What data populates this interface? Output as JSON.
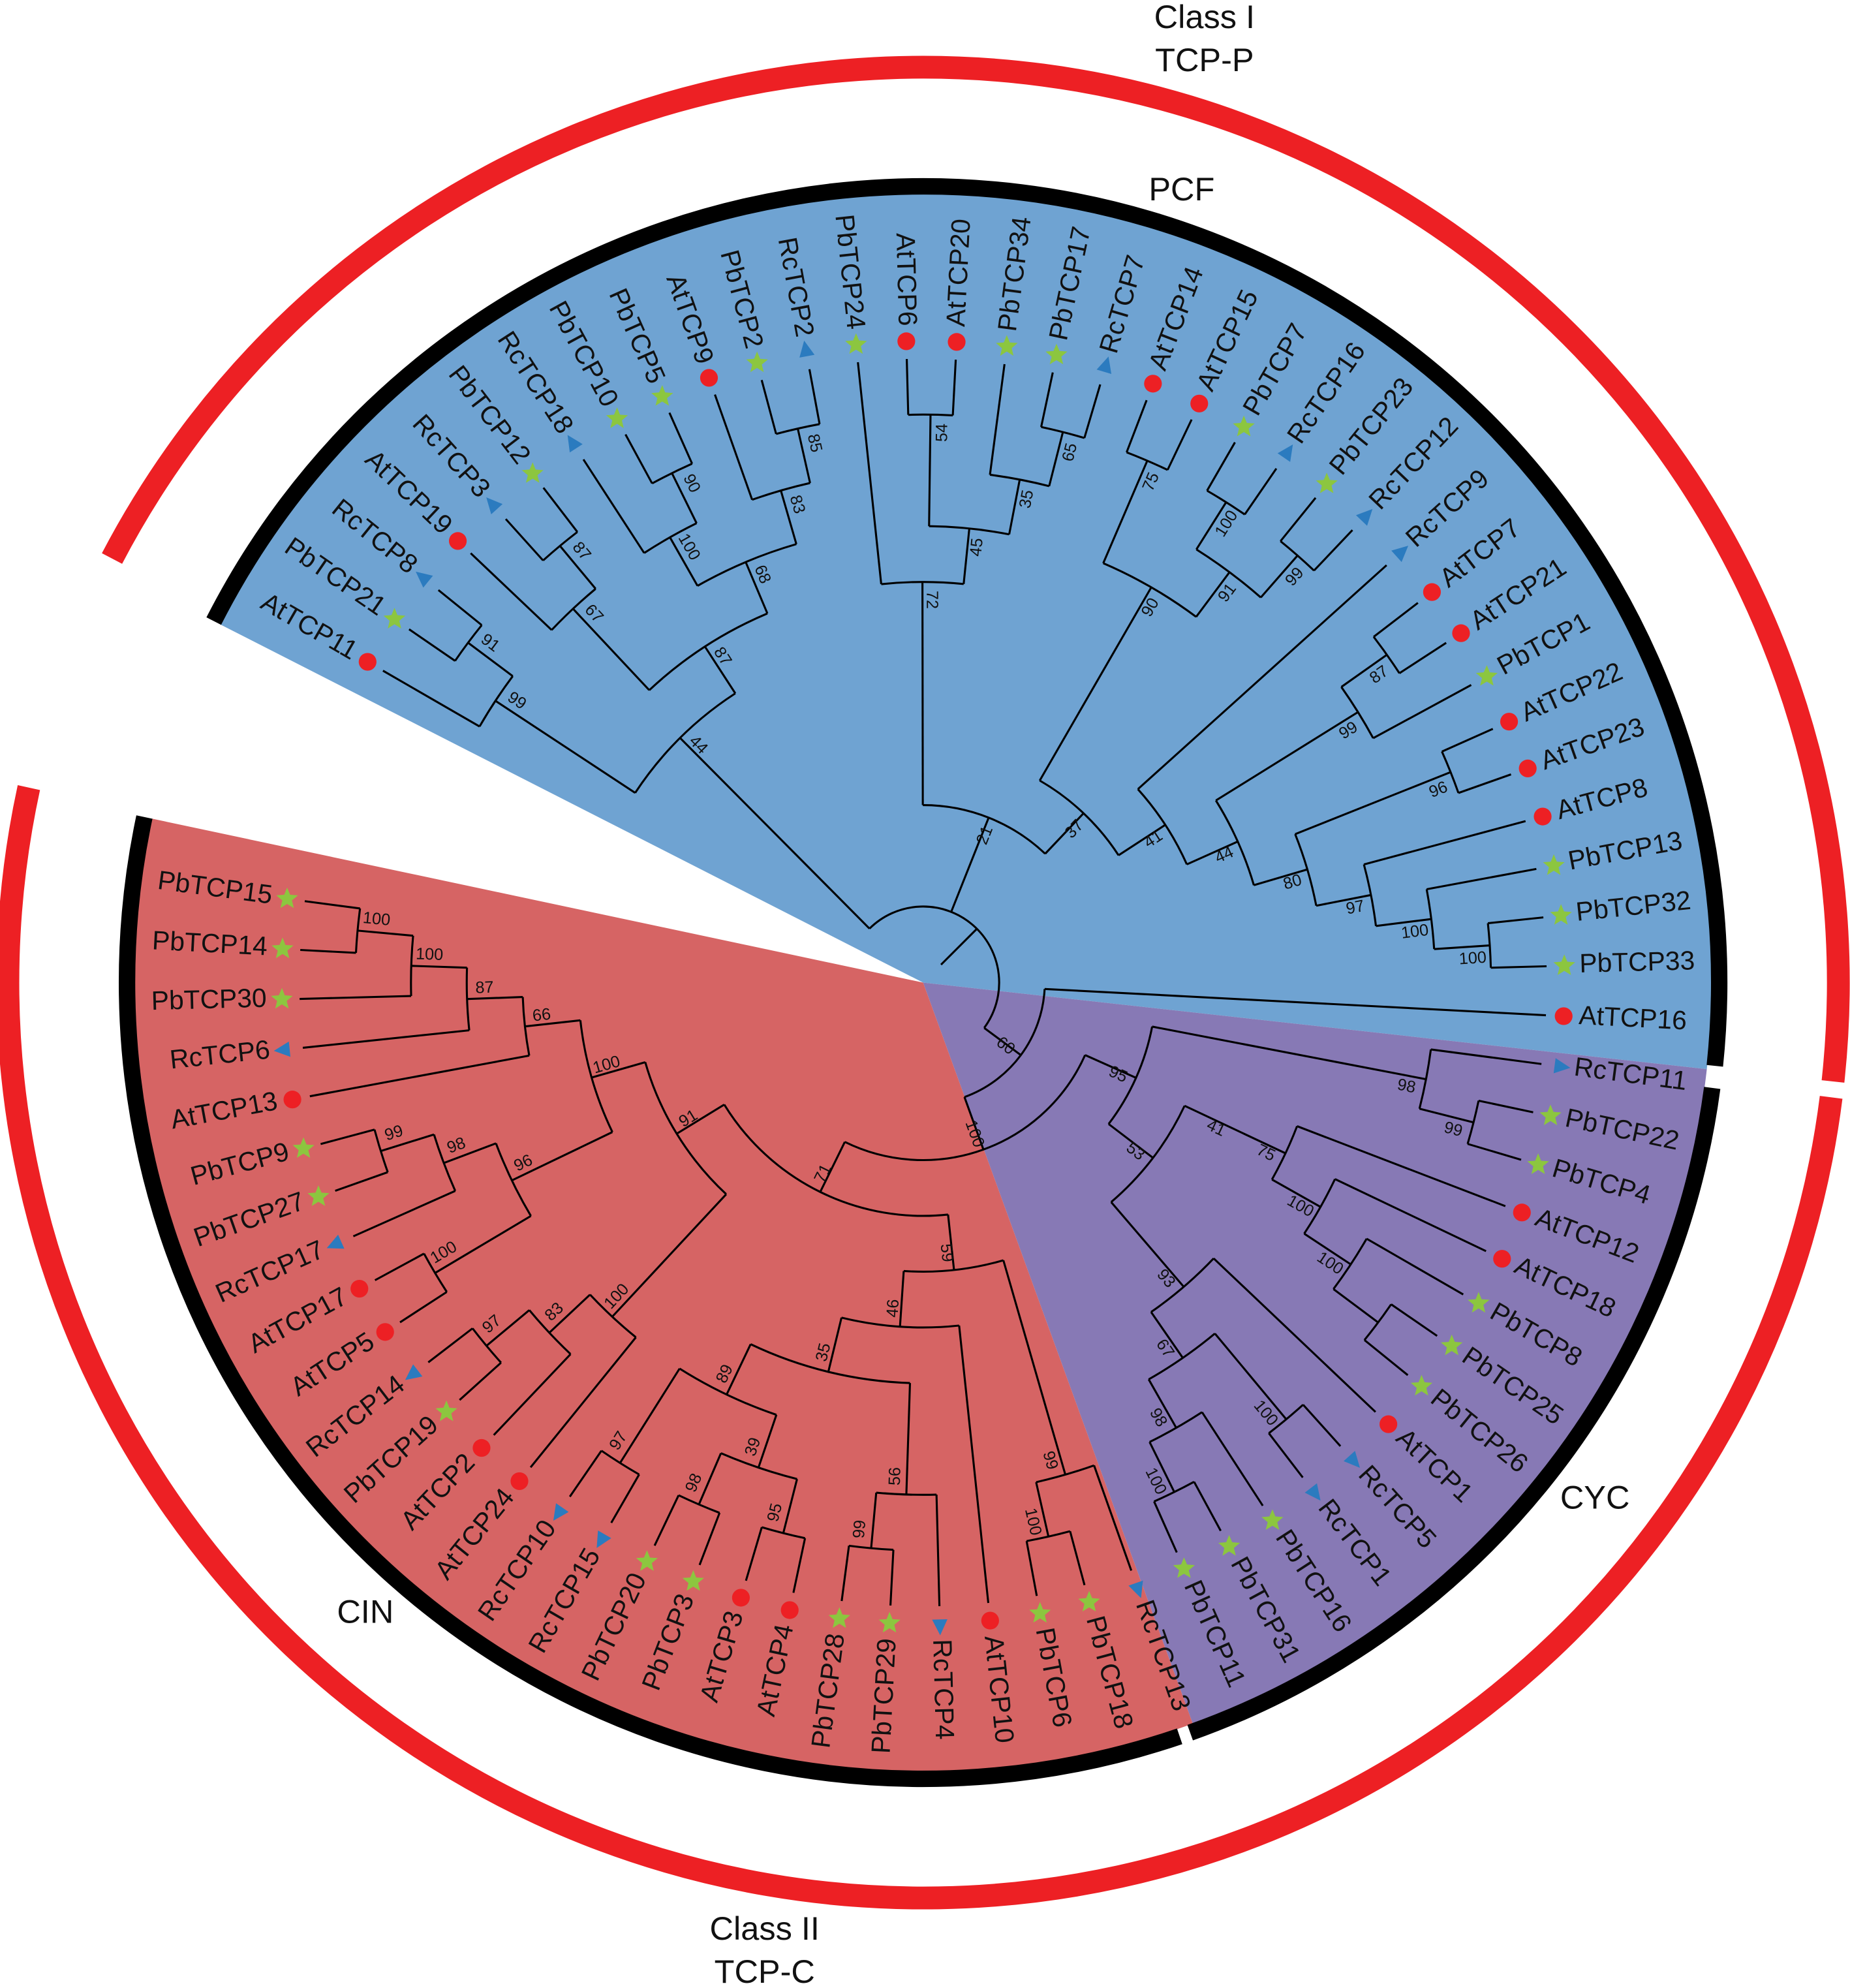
{
  "labels": {
    "class1_line1": "Class I",
    "class1_line2": "TCP-P",
    "class2_line1": "Class II",
    "class2_line2": "TCP-C",
    "pcf": "PCF",
    "cyc": "CYC",
    "cin": "CIN"
  },
  "colors": {
    "pcf_fill": "#6fa3d2",
    "cyc_fill": "#8779b5",
    "cin_fill": "#d66464",
    "class_ring": "#ed2024",
    "subfamily_ring": "#000000",
    "At_marker": "#ed2024",
    "Pb_marker": "#8cc63f",
    "Rc_marker": "#2b7bbf"
  },
  "markers": {
    "At": "red-circle",
    "Pb": "green-star",
    "Rc": "blue-triangle"
  },
  "tree": {
    "c": [
      {
        "b": 44,
        "c": [
          {
            "b": 99,
            "c": [
              "AtTCP11",
              {
                "b": 91,
                "c": [
                  "PbTCP21",
                  "RcTCP8"
                ]
              }
            ]
          },
          {
            "b": 87,
            "c": [
              {
                "b": 67,
                "c": [
                  "AtTCP19",
                  {
                    "b": 87,
                    "c": [
                      "RcTCP3",
                      "PbTCP12"
                    ]
                  }
                ]
              },
              {
                "b": 68,
                "c": [
                  {
                    "b": 100,
                    "c": [
                      "RcTCP18",
                      {
                        "b": 90,
                        "c": [
                          "PbTCP10",
                          "PbTCP5"
                        ]
                      }
                    ]
                  },
                  {
                    "b": 83,
                    "c": [
                      "AtTCP9",
                      {
                        "b": 85,
                        "c": [
                          "PbTCP2",
                          "RcTCP2"
                        ]
                      }
                    ]
                  }
                ]
              }
            ]
          }
        ]
      },
      {
        "b": 21,
        "c": [
          {
            "b": 72,
            "c": [
              "PbTCP24",
              {
                "b": 45,
                "c": [
                  {
                    "b": 54,
                    "c": [
                      "AtTCP6",
                      "AtTCP20"
                    ]
                  },
                  {
                    "b": 35,
                    "c": [
                      "PbTCP34",
                      {
                        "b": 65,
                        "c": [
                          "PbTCP17",
                          "RcTCP7"
                        ]
                      }
                    ]
                  }
                ]
              }
            ]
          },
          {
            "b": 37,
            "c": [
              {
                "b": 90,
                "c": [
                  {
                    "b": 75,
                    "c": [
                      "AtTCP14",
                      "AtTCP15"
                    ]
                  },
                  {
                    "b": 91,
                    "c": [
                      {
                        "b": 100,
                        "c": [
                          "PbTCP7",
                          "RcTCP16"
                        ]
                      },
                      {
                        "b": 99,
                        "c": [
                          "PbTCP23",
                          "RcTCP12"
                        ]
                      }
                    ]
                  }
                ]
              },
              {
                "b": 41,
                "c": [
                  "RcTCP9",
                  {
                    "b": 44,
                    "c": [
                      {
                        "b": 99,
                        "c": [
                          {
                            "b": 87,
                            "c": [
                              "AtTCP7",
                              "AtTCP21"
                            ]
                          },
                          "PbTCP1"
                        ]
                      },
                      {
                        "b": 80,
                        "c": [
                          {
                            "b": 96,
                            "c": [
                              "AtTCP22",
                              "AtTCP23"
                            ]
                          },
                          {
                            "b": 97,
                            "c": [
                              "AtTCP8",
                              {
                                "b": 100,
                                "c": [
                                  "PbTCP13",
                                  {
                                    "b": 100,
                                    "c": [
                                      "PbTCP32",
                                      "PbTCP33"
                                    ]
                                  }
                                ]
                              }
                            ]
                          }
                        ]
                      }
                    ]
                  }
                ]
              }
            ]
          }
        ]
      },
      {
        "b": 60,
        "c": [
          "AtTCP16",
          {
            "b": 100,
            "c": [
              {
                "b": 95,
                "c": [
                  {
                    "b": 98,
                    "c": [
                      "RcTCP11",
                      {
                        "b": 99,
                        "c": [
                          "PbTCP22",
                          "PbTCP4"
                        ]
                      }
                    ]
                  },
                  {
                    "b": 53,
                    "c": [
                      {
                        "b": 41,
                        "c": [
                          {
                            "b": 75,
                            "c": [
                              "AtTCP12",
                              {
                                "b": 100,
                                "c": [
                                  "AtTCP18",
                                  {
                                    "b": 100,
                                    "c": [
                                      "PbTCP8",
                                      {
                                        "c": [
                                          "PbTCP25",
                                          "PbTCP26"
                                        ]
                                      }
                                    ]
                                  }
                                ]
                              }
                            ]
                          }
                        ]
                      },
                      {
                        "b": 93,
                        "c": [
                          "AtTCP1",
                          {
                            "b": 67,
                            "c": [
                              {
                                "b": 100,
                                "c": [
                                  "RcTCP5",
                                  "RcTCP1"
                                ]
                              },
                              {
                                "b": 98,
                                "c": [
                                  "PbTCP16",
                                  {
                                    "b": 100,
                                    "c": [
                                      "PbTCP31",
                                      "PbTCP11"
                                    ]
                                  }
                                ]
                              }
                            ]
                          }
                        ]
                      }
                    ]
                  }
                ]
              },
              {
                "b": 71,
                "c": [
                  {
                    "b": 59,
                    "c": [
                      {
                        "b": 99,
                        "c": [
                          "RcTCP13",
                          {
                            "b": 100,
                            "c": [
                              "PbTCP18",
                              "PbTCP6"
                            ]
                          }
                        ]
                      },
                      {
                        "b": 46,
                        "c": [
                          "AtTCP10",
                          {
                            "b": 35,
                            "c": [
                              {
                                "b": 56,
                                "c": [
                                  "RcTCP4",
                                  {
                                    "b": 99,
                                    "c": [
                                      "PbTCP29",
                                      "PbTCP28"
                                    ]
                                  }
                                ]
                              },
                              {
                                "b": 89,
                                "c": [
                                  {
                                    "b": 39,
                                    "c": [
                                      {
                                        "b": 95,
                                        "c": [
                                          "AtTCP4",
                                          "AtTCP3"
                                        ]
                                      },
                                      {
                                        "b": 98,
                                        "c": [
                                          "PbTCP3",
                                          "PbTCP20"
                                        ]
                                      }
                                    ]
                                  },
                                  {
                                    "b": 97,
                                    "c": [
                                      "RcTCP15",
                                      "RcTCP10"
                                    ]
                                  }
                                ]
                              }
                            ]
                          }
                        ]
                      }
                    ]
                  },
                  {
                    "b": 91,
                    "c": [
                      {
                        "b": 100,
                        "c": [
                          "AtTCP24",
                          {
                            "b": 83,
                            "c": [
                              "AtTCP2",
                              {
                                "b": 97,
                                "c": [
                                  "PbTCP19",
                                  "RcTCP14"
                                ]
                              }
                            ]
                          }
                        ]
                      },
                      {
                        "b": 100,
                        "c": [
                          {
                            "b": 96,
                            "c": [
                              {
                                "b": 100,
                                "c": [
                                  "AtTCP5",
                                  "AtTCP17"
                                ]
                              },
                              {
                                "b": 98,
                                "c": [
                                  "RcTCP17",
                                  {
                                    "b": 99,
                                    "c": [
                                      "PbTCP27",
                                      "PbTCP9"
                                    ]
                                  }
                                ]
                              }
                            ]
                          },
                          {
                            "b": 66,
                            "c": [
                              "AtTCP13",
                              {
                                "b": 87,
                                "c": [
                                  "RcTCP6",
                                  {
                                    "b": 100,
                                    "c": [
                                      "PbTCP30",
                                      {
                                        "b": 100,
                                        "c": [
                                          "PbTCP14",
                                          "PbTCP15"
                                        ]
                                      }
                                    ]
                                  }
                                ]
                              }
                            ]
                          }
                        ]
                      }
                    ]
                  }
                ]
              }
            ]
          }
        ]
      }
    ]
  }
}
